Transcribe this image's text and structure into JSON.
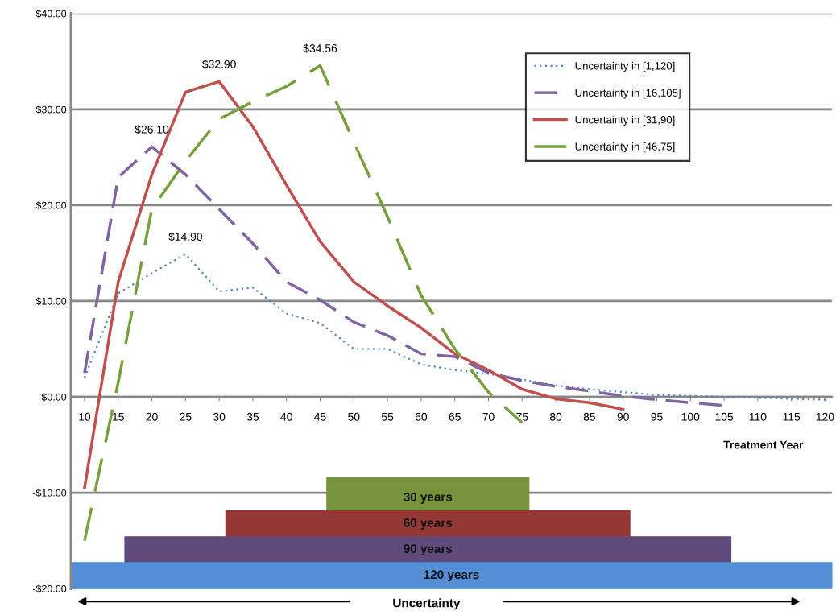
{
  "chart_data": {
    "type": "line",
    "xlabel": "Treatment Year",
    "xlim": [
      8,
      121
    ],
    "xticks": [
      10,
      15,
      20,
      25,
      30,
      35,
      40,
      45,
      50,
      55,
      60,
      65,
      70,
      75,
      80,
      85,
      90,
      95,
      100,
      105,
      110,
      115,
      120
    ],
    "ylim": [
      -20,
      40
    ],
    "yticks": [
      {
        "value": -20,
        "label": "-$20.00"
      },
      {
        "value": -10,
        "label": "-$10.00"
      },
      {
        "value": 0,
        "label": "$0.00"
      },
      {
        "value": 10,
        "label": "$10.00"
      },
      {
        "value": 20,
        "label": "$20.00"
      },
      {
        "value": 30,
        "label": "$30.00"
      },
      {
        "value": 40,
        "label": "$40.00"
      }
    ],
    "grid": "y",
    "legend": "top right",
    "marker": "none",
    "series": [
      {
        "name": "Uncertainty in [1,120]",
        "color": "#4f81bd",
        "line_style": "dotted",
        "x": [
          10,
          15,
          20,
          25,
          30,
          35,
          40,
          45,
          50,
          55,
          60,
          65,
          70,
          75,
          80,
          85,
          90,
          95,
          100,
          105,
          110,
          115,
          120
        ],
        "values": [
          2,
          10.8,
          12.9,
          14.9,
          11.0,
          11.4,
          8.7,
          7.7,
          5.0,
          5.0,
          3.4,
          2.8,
          2.4,
          1.8,
          1.2,
          0.8,
          0.5,
          0.2,
          0.1,
          0,
          -0.1,
          -0.2,
          -0.3
        ]
      },
      {
        "name": "Uncertainty in [16,105]",
        "color": "#8064a2",
        "line_style": "dashed",
        "x": [
          10,
          15,
          20,
          25,
          30,
          35,
          40,
          45,
          50,
          55,
          60,
          65,
          70,
          75,
          80,
          85,
          90,
          95,
          100,
          105
        ],
        "values": [
          2.5,
          22.9,
          26.1,
          23.2,
          19.6,
          16.0,
          12.0,
          10.1,
          7.8,
          6.4,
          4.5,
          4.2,
          2.5,
          1.7,
          1.1,
          0.6,
          0.1,
          -0.3,
          -0.6,
          -0.9
        ]
      },
      {
        "name": "Uncertainty in [31,90]",
        "color": "#c0504d",
        "line_style": "solid",
        "x": [
          10,
          15,
          20,
          25,
          30,
          35,
          40,
          45,
          50,
          55,
          60,
          65,
          70,
          75,
          80,
          85,
          90
        ],
        "values": [
          -9.5,
          12.0,
          23.2,
          31.8,
          32.9,
          28.2,
          22.1,
          16.2,
          12.0,
          9.5,
          7.2,
          4.5,
          2.8,
          0.8,
          -0.2,
          -0.6,
          -1.3
        ]
      },
      {
        "name": "Uncertainty in [46,75]",
        "color": "#77a03c",
        "line_style": "dashed",
        "x": [
          10,
          15,
          20,
          25,
          30,
          35,
          40,
          45,
          50,
          55,
          60,
          65,
          70,
          75
        ],
        "values": [
          -15,
          1.5,
          19.6,
          24.6,
          29.0,
          30.8,
          32.4,
          34.56,
          26.6,
          18.8,
          10.6,
          5.0,
          0.5,
          -2.7
        ]
      }
    ],
    "bands": [
      {
        "axis": "x",
        "from": 46,
        "to": 76,
        "label": "30 years",
        "color": "#77933c"
      },
      {
        "axis": "x",
        "from": 31,
        "to": 91,
        "label": "60 years",
        "color": "#953735"
      },
      {
        "axis": "x",
        "from": 16,
        "to": 106,
        "label": "90 years",
        "color": "#604a7b"
      },
      {
        "axis": "x",
        "from": 8,
        "to": 121,
        "label": "120 years",
        "color": "#558ed5"
      }
    ],
    "annotations": [
      {
        "text": "$14.90",
        "x": 25,
        "y": 14.9
      },
      {
        "text": "$26.10",
        "x": 20,
        "y": 26.1
      },
      {
        "text": "$32.90",
        "x": 30,
        "y": 32.9
      },
      {
        "text": "$34.56",
        "x": 45,
        "y": 34.56
      },
      "Uncertainty"
    ]
  }
}
